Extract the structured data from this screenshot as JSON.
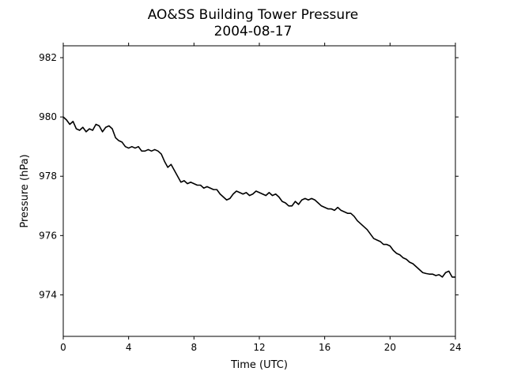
{
  "chart_data": {
    "type": "line",
    "title": "AO&SS Building Tower Pressure",
    "subtitle": "2004-08-17",
    "xlabel": "Time (UTC)",
    "ylabel": "Pressure (hPa)",
    "xlim": [
      0,
      24
    ],
    "ylim": [
      972.6,
      982.4
    ],
    "xticks": [
      0,
      4,
      8,
      12,
      16,
      20,
      24
    ],
    "yticks": [
      974,
      976,
      978,
      980,
      982
    ],
    "grid": false,
    "line_color": "#000000",
    "series": [
      {
        "x": [
          0.0,
          0.2,
          0.4,
          0.6,
          0.8,
          1.0,
          1.2,
          1.4,
          1.6,
          1.8,
          2.0,
          2.2,
          2.4,
          2.6,
          2.8,
          3.0,
          3.2,
          3.4,
          3.6,
          3.8,
          4.0,
          4.2,
          4.4,
          4.6,
          4.8,
          5.0,
          5.2,
          5.4,
          5.6,
          5.8,
          6.0,
          6.2,
          6.4,
          6.6,
          6.8,
          7.0,
          7.2,
          7.4,
          7.6,
          7.8,
          8.0,
          8.2,
          8.4,
          8.6,
          8.8,
          9.0,
          9.2,
          9.4,
          9.6,
          9.8,
          10.0,
          10.2,
          10.4,
          10.6,
          10.8,
          11.0,
          11.2,
          11.4,
          11.6,
          11.8,
          12.0,
          12.2,
          12.4,
          12.6,
          12.8,
          13.0,
          13.2,
          13.4,
          13.6,
          13.8,
          14.0,
          14.2,
          14.4,
          14.6,
          14.8,
          15.0,
          15.2,
          15.4,
          15.6,
          15.8,
          16.0,
          16.2,
          16.4,
          16.6,
          16.8,
          17.0,
          17.2,
          17.4,
          17.6,
          17.8,
          18.0,
          18.2,
          18.4,
          18.6,
          18.8,
          19.0,
          19.2,
          19.4,
          19.6,
          19.8,
          20.0,
          20.2,
          20.4,
          20.6,
          20.8,
          21.0,
          21.2,
          21.4,
          21.6,
          21.8,
          22.0,
          22.2,
          22.4,
          22.6,
          22.8,
          23.0,
          23.2,
          23.4,
          23.6,
          23.8,
          24.0
        ],
        "values": [
          980.0,
          979.9,
          979.75,
          979.85,
          979.6,
          979.55,
          979.65,
          979.5,
          979.6,
          979.55,
          979.75,
          979.7,
          979.5,
          979.65,
          979.7,
          979.6,
          979.3,
          979.2,
          979.15,
          979.0,
          978.95,
          979.0,
          978.95,
          979.0,
          978.85,
          978.85,
          978.9,
          978.85,
          978.9,
          978.85,
          978.75,
          978.5,
          978.3,
          978.4,
          978.2,
          978.0,
          977.8,
          977.85,
          977.75,
          977.8,
          977.75,
          977.7,
          977.7,
          977.6,
          977.65,
          977.6,
          977.55,
          977.55,
          977.4,
          977.3,
          977.2,
          977.25,
          977.4,
          977.5,
          977.45,
          977.4,
          977.45,
          977.35,
          977.4,
          977.5,
          977.45,
          977.4,
          977.35,
          977.45,
          977.35,
          977.4,
          977.3,
          977.15,
          977.1,
          977.0,
          977.0,
          977.15,
          977.05,
          977.2,
          977.25,
          977.2,
          977.25,
          977.2,
          977.1,
          977.0,
          976.95,
          976.9,
          976.9,
          976.85,
          976.95,
          976.85,
          976.8,
          976.75,
          976.75,
          976.65,
          976.5,
          976.4,
          976.3,
          976.2,
          976.05,
          975.9,
          975.85,
          975.8,
          975.7,
          975.7,
          975.65,
          975.5,
          975.4,
          975.35,
          975.25,
          975.2,
          975.1,
          975.05,
          974.95,
          974.85,
          974.75,
          974.72,
          974.7,
          974.7,
          974.65,
          974.68,
          974.6,
          974.75,
          974.8,
          974.6,
          974.6
        ]
      }
    ]
  }
}
